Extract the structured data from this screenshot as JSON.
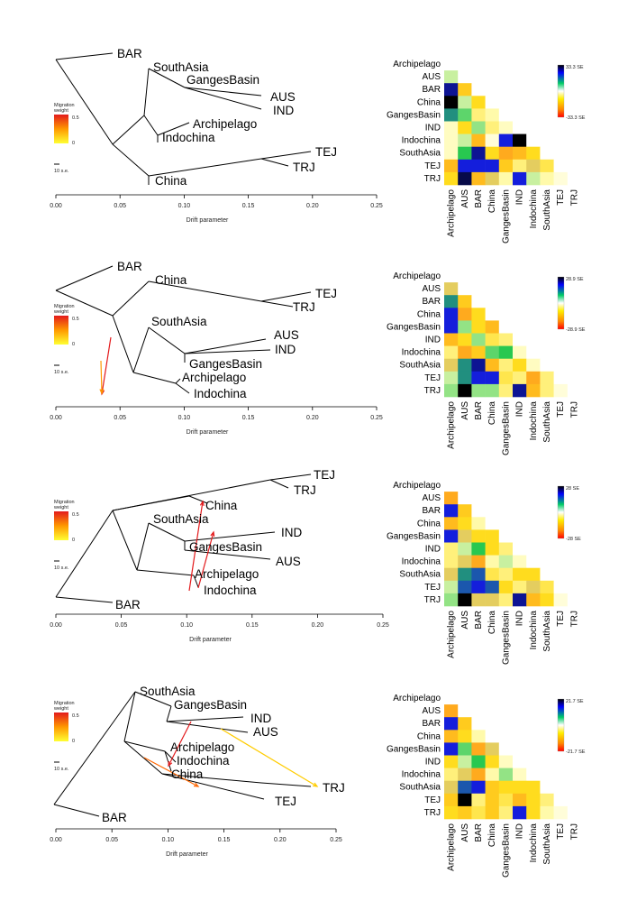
{
  "populations": [
    "Archipelago",
    "AUS",
    "BAR",
    "China",
    "GangesBasin",
    "IND",
    "Indochina",
    "SouthAsia",
    "TEJ",
    "TRJ"
  ],
  "legend": {
    "title_line1": "Migration",
    "title_line2": "weight",
    "max": "0.5",
    "min": "0",
    "scale_label": "10 s.e."
  },
  "axis_title": "Drift parameter",
  "colors": {
    "tree": "#000000",
    "migration_low": "#ffd400",
    "migration_high": "#d7191c",
    "heat_pos": "#0000ff",
    "heat_neg": "#ff0000"
  },
  "panels": [
    {
      "ticks": [
        "0.00",
        "0.05",
        "0.10",
        "0.15",
        "0.20",
        "0.25"
      ],
      "se_top": "33.3 SE",
      "se_bottom": "-33.3 SE",
      "labels": {
        "BAR": "BAR",
        "SouthAsia": "SouthAsia",
        "GangesBasin": "GangesBasin",
        "AUS": "AUS",
        "IND": "IND",
        "Archipelago": "Archipelago",
        "Indochina": "Indochina",
        "TEJ": "TEJ",
        "TRJ": "TRJ",
        "China": "China"
      },
      "heat": [
        [
          0
        ],
        [
          0.55,
          0
        ],
        [
          0.9,
          0.35,
          0
        ],
        [
          1.0,
          0.55,
          0.3,
          0
        ],
        [
          0.75,
          0.65,
          0.2,
          0.15,
          0
        ],
        [
          0.1,
          0.3,
          0.6,
          0.2,
          0.1,
          0
        ],
        [
          0.1,
          0.55,
          0.4,
          0.05,
          0.85,
          1.0,
          0
        ],
        [
          0.1,
          0.7,
          0.9,
          0.3,
          0.45,
          0.4,
          0.3,
          0
        ],
        [
          0.4,
          0.85,
          0.85,
          0.85,
          0.35,
          0.2,
          0.5,
          0.25,
          0
        ],
        [
          0.3,
          0.95,
          0.4,
          0.5,
          0.15,
          0.85,
          0.55,
          0.15,
          0.05,
          0
        ]
      ]
    },
    {
      "ticks": [
        "0.00",
        "0.05",
        "0.10",
        "0.15",
        "0.20",
        "0.25"
      ],
      "se_top": "28.9 SE",
      "se_bottom": "-28.9 SE",
      "labels": {
        "BAR": "BAR",
        "China": "China",
        "TEJ": "TEJ",
        "TRJ": "TRJ",
        "SouthAsia": "SouthAsia",
        "AUS": "AUS",
        "IND": "IND",
        "GangesBasin": "GangesBasin",
        "Archipelago": "Archipelago",
        "Indochina": "Indochina"
      },
      "heat": [
        [
          0
        ],
        [
          0.5,
          0
        ],
        [
          0.75,
          0.35,
          0
        ],
        [
          0.85,
          0.45,
          0.3,
          0
        ],
        [
          0.85,
          0.6,
          0.3,
          0.4,
          0
        ],
        [
          0.4,
          0.3,
          0.6,
          0.25,
          0.2,
          0
        ],
        [
          0.2,
          0.45,
          0.35,
          0.65,
          0.7,
          0.1,
          0
        ],
        [
          0.5,
          0.75,
          0.9,
          0.4,
          0.2,
          0.3,
          0.1,
          0
        ],
        [
          0.55,
          0.75,
          0.85,
          0.85,
          0.25,
          0.2,
          0.45,
          0.2,
          0
        ],
        [
          0.6,
          1.0,
          0.6,
          0.6,
          0.2,
          0.9,
          0.4,
          0.2,
          0.05,
          0
        ]
      ]
    },
    {
      "ticks": [
        "0.00",
        "0.05",
        "0.10",
        "0.15",
        "0.20",
        "0.25"
      ],
      "se_top": "28 SE",
      "se_bottom": "-28 SE",
      "labels": {
        "TEJ": "TEJ",
        "TRJ": "TRJ",
        "China": "China",
        "SouthAsia": "SouthAsia",
        "IND": "IND",
        "GangesBasin": "GangesBasin",
        "AUS": "AUS",
        "Archipelago": "Archipelago",
        "Indochina": "Indochina",
        "BAR": "BAR"
      },
      "heat": [
        [
          0
        ],
        [
          0.45,
          0
        ],
        [
          0.85,
          0.35,
          0
        ],
        [
          0.4,
          0.3,
          0.15,
          0
        ],
        [
          0.85,
          0.5,
          0.3,
          0.3,
          0
        ],
        [
          0.2,
          0.55,
          0.7,
          0.3,
          0.2,
          0
        ],
        [
          0.2,
          0.5,
          0.45,
          0.15,
          0.55,
          0.1,
          0
        ],
        [
          0.5,
          0.75,
          0.8,
          0.25,
          0.2,
          0.3,
          0.3,
          0
        ],
        [
          0.55,
          0.8,
          0.85,
          0.8,
          0.3,
          0.2,
          0.5,
          0.25,
          0
        ],
        [
          0.6,
          1.0,
          0.5,
          0.5,
          0.2,
          0.9,
          0.4,
          0.3,
          0.05,
          0
        ]
      ]
    },
    {
      "ticks": [
        "0.00",
        "0.05",
        "0.10",
        "0.15",
        "0.20",
        "0.25"
      ],
      "se_top": "21.7 SE",
      "se_bottom": "-21.7 SE",
      "labels": {
        "SouthAsia": "SouthAsia",
        "GangesBasin": "GangesBasin",
        "IND": "IND",
        "AUS": "AUS",
        "Archipelago": "Archipelago",
        "Indochina": "Indochina",
        "China": "China",
        "TRJ": "TRJ",
        "TEJ": "TEJ",
        "BAR": "BAR"
      },
      "heat": [
        [
          0
        ],
        [
          0.45,
          0
        ],
        [
          0.85,
          0.35,
          0
        ],
        [
          0.4,
          0.3,
          0.15,
          0
        ],
        [
          0.85,
          0.65,
          0.45,
          0.5,
          0
        ],
        [
          0.3,
          0.55,
          0.7,
          0.3,
          0.1,
          0
        ],
        [
          0.2,
          0.5,
          0.45,
          0.15,
          0.6,
          0.1,
          0
        ],
        [
          0.5,
          0.8,
          0.85,
          0.35,
          0.3,
          0.3,
          0.3,
          0
        ],
        [
          0.35,
          1.0,
          0.2,
          0.35,
          0.25,
          0.4,
          0.3,
          0.2,
          0
        ],
        [
          0.3,
          0.35,
          0.25,
          0.35,
          0.2,
          0.85,
          0.3,
          0.15,
          0.05,
          0
        ]
      ]
    }
  ]
}
